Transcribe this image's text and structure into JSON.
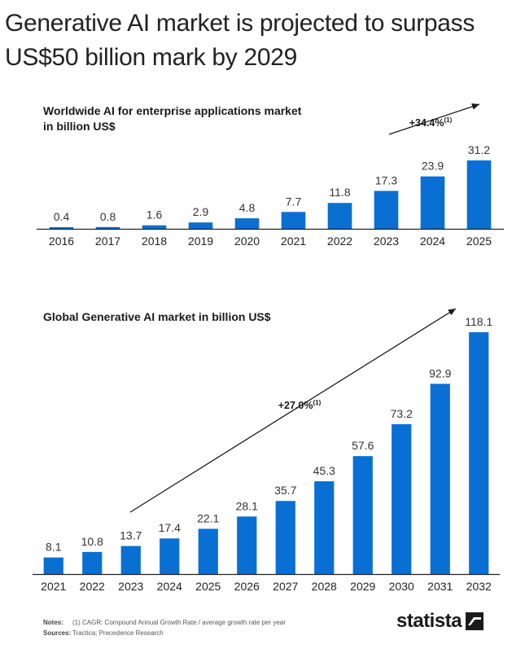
{
  "title": "Generative AI market is projected to surpass US$50 billion mark by 2029",
  "colors": {
    "bar": "#0A6FD3",
    "axis": "#222222",
    "arrow": "#1a1a1a"
  },
  "chart_data": [
    {
      "type": "bar",
      "title": "Worldwide AI for enterprise applications market in billion US$",
      "categories": [
        "2016",
        "2017",
        "2018",
        "2019",
        "2020",
        "2021",
        "2022",
        "2023",
        "2024",
        "2025"
      ],
      "values": [
        0.4,
        0.8,
        1.6,
        2.9,
        4.8,
        7.7,
        11.8,
        17.3,
        23.9,
        31.2
      ],
      "value_labels": [
        "0.4",
        "0.8",
        "1.6",
        "2.9",
        "4.8",
        "7.7",
        "11.8",
        "17.3",
        "23.9",
        "31.2"
      ],
      "cagr": {
        "text": "+34.4%",
        "footnote": "(1)"
      },
      "ylim": [
        0,
        31.2
      ],
      "grid": false,
      "legend": "none"
    },
    {
      "type": "bar",
      "title": "Global Generative AI market in billion US$",
      "categories": [
        "2021",
        "2022",
        "2023",
        "2024",
        "2025",
        "2026",
        "2027",
        "2028",
        "2029",
        "2030",
        "2031",
        "2032"
      ],
      "values": [
        8.1,
        10.8,
        13.7,
        17.4,
        22.1,
        28.1,
        35.7,
        45.3,
        57.6,
        73.2,
        92.9,
        118.1
      ],
      "value_labels": [
        "8.1",
        "10.8",
        "13.7",
        "17.4",
        "22.1",
        "28.1",
        "35.7",
        "45.3",
        "57.6",
        "73.2",
        "92.9",
        "118.1"
      ],
      "cagr": {
        "text": "+27.0%",
        "footnote": "(1)"
      },
      "ylim": [
        0,
        118.1
      ],
      "grid": false,
      "legend": "none"
    }
  ],
  "footer": {
    "notes_label": "Notes:",
    "notes_text": "(1) CAGR: Compound Annual Growth Rate / average growth rate per year",
    "sources_label": "Sources:",
    "sources_text": "Tractica; Precedence Research"
  },
  "logo": {
    "text": "statista",
    "icon": "statista-logo-icon"
  }
}
